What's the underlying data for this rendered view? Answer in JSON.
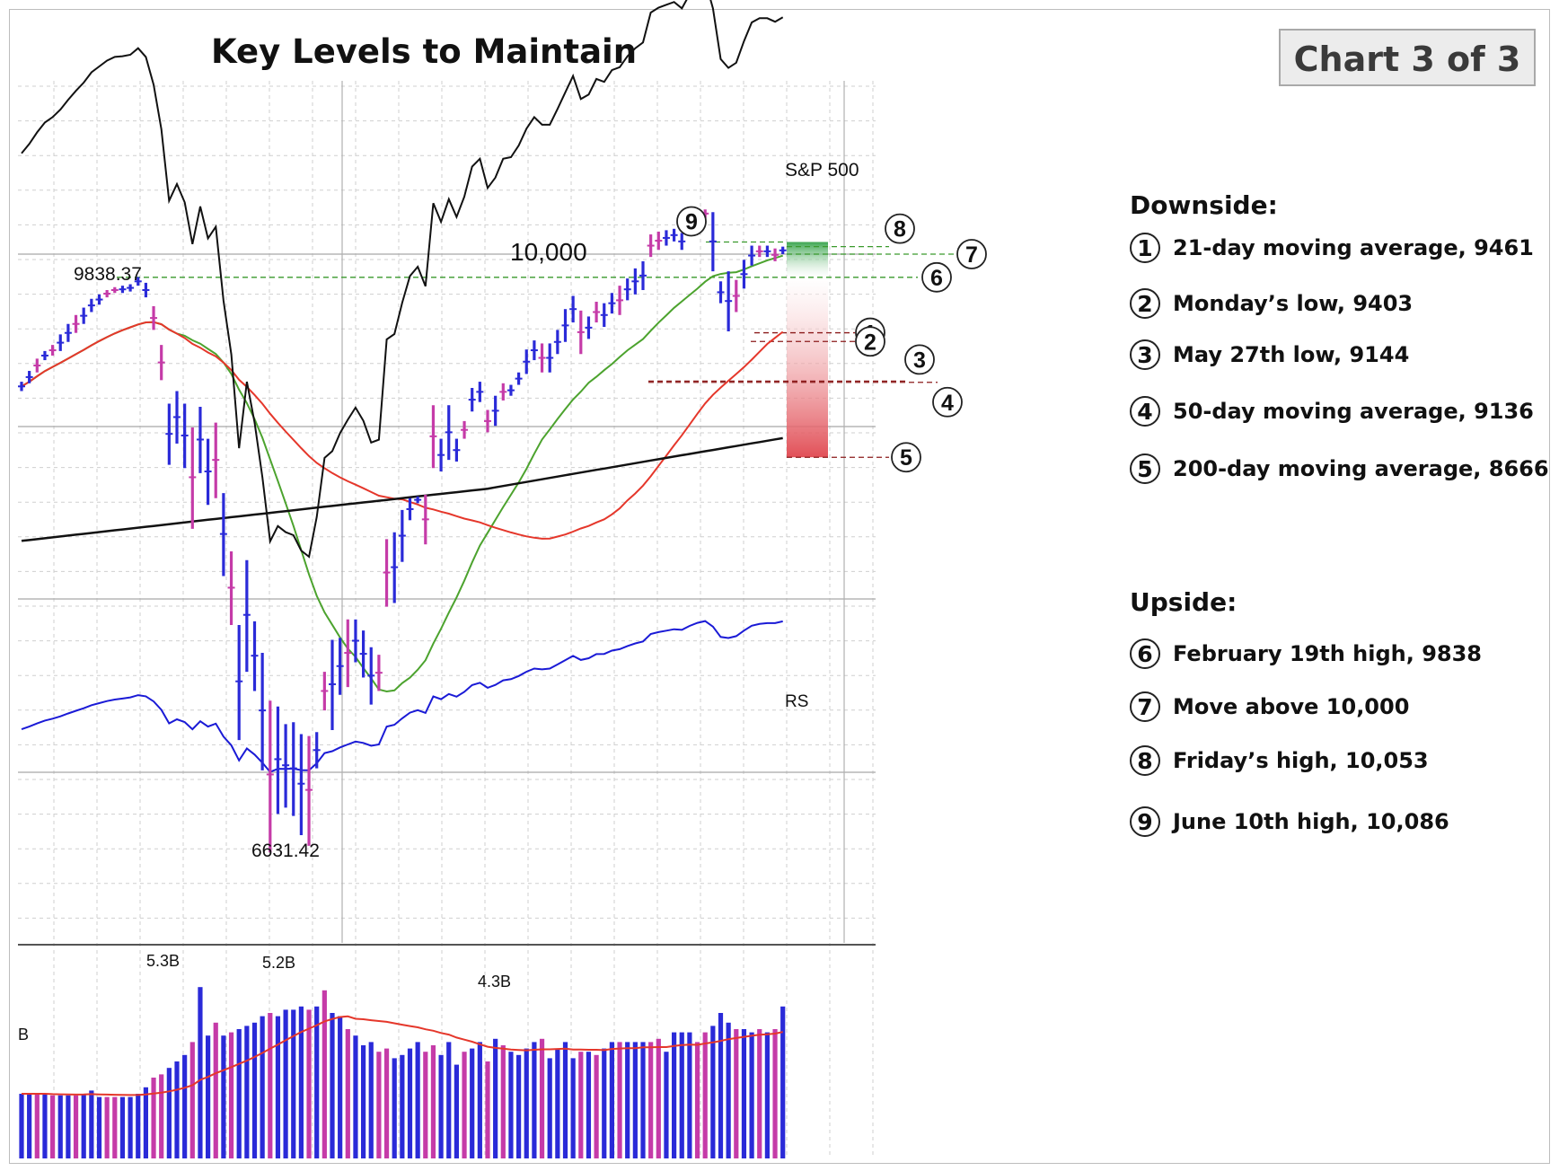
{
  "title": "Key Levels to Maintain",
  "badge": "Chart 3 of 3",
  "chart_data": [
    {
      "type": "line",
      "subtype": "ohlc-bar-price-chart",
      "title": "Key Levels to Maintain",
      "y_scale": "log",
      "ylim": [
        6400,
        10450
      ],
      "gridlines_labeled": [
        {
          "value": 10000,
          "label": "10,000"
        }
      ],
      "grid": true,
      "annotations": [
        {
          "value": 9838.37,
          "label": "9838.37"
        },
        {
          "value": 6631.42,
          "label": "6631.42"
        }
      ],
      "price_bars": [
        [
          9080,
          9140
        ],
        [
          9130,
          9210
        ],
        [
          9200,
          9290
        ],
        [
          9280,
          9340
        ],
        [
          9310,
          9380
        ],
        [
          9340,
          9450
        ],
        [
          9400,
          9520
        ],
        [
          9460,
          9580
        ],
        [
          9520,
          9630
        ],
        [
          9600,
          9690
        ],
        [
          9650,
          9720
        ],
        [
          9700,
          9750
        ],
        [
          9730,
          9770
        ],
        [
          9730,
          9780
        ],
        [
          9740,
          9790
        ],
        [
          9780,
          9840
        ],
        [
          9700,
          9800
        ],
        [
          9480,
          9640
        ],
        [
          9150,
          9380
        ],
        [
          8620,
          9000
        ],
        [
          8750,
          9080
        ],
        [
          8600,
          9000
        ],
        [
          8240,
          8850
        ],
        [
          8570,
          8980
        ],
        [
          8380,
          8780
        ],
        [
          8420,
          8880
        ],
        [
          7970,
          8450
        ],
        [
          7700,
          8110
        ],
        [
          7100,
          7700
        ],
        [
          7450,
          8060
        ],
        [
          7350,
          7720
        ],
        [
          6950,
          7550
        ],
        [
          6560,
          7300
        ],
        [
          6740,
          7270
        ],
        [
          6770,
          7180
        ],
        [
          6730,
          7190
        ],
        [
          6640,
          7130
        ],
        [
          6590,
          7120
        ],
        [
          6960,
          7140
        ],
        [
          7250,
          7450
        ],
        [
          7150,
          7620
        ],
        [
          7330,
          7630
        ],
        [
          7370,
          7730
        ],
        [
          7500,
          7730
        ],
        [
          7420,
          7670
        ],
        [
          7280,
          7580
        ],
        [
          7350,
          7540
        ],
        [
          7800,
          8180
        ],
        [
          7820,
          8220
        ],
        [
          8050,
          8350
        ],
        [
          8290,
          8420
        ],
        [
          8390,
          8430
        ],
        [
          8150,
          8440
        ],
        [
          8600,
          8990
        ],
        [
          8580,
          8780
        ],
        [
          8650,
          8990
        ],
        [
          8640,
          8780
        ],
        [
          8780,
          8890
        ],
        [
          8950,
          9100
        ],
        [
          9010,
          9140
        ],
        [
          8820,
          8960
        ],
        [
          8860,
          9050
        ],
        [
          9020,
          9130
        ],
        [
          9050,
          9120
        ],
        [
          9120,
          9200
        ],
        [
          9190,
          9350
        ],
        [
          9280,
          9410
        ],
        [
          9200,
          9390
        ],
        [
          9200,
          9390
        ],
        [
          9320,
          9480
        ],
        [
          9400,
          9620
        ],
        [
          9530,
          9710
        ],
        [
          9320,
          9610
        ],
        [
          9420,
          9570
        ],
        [
          9530,
          9670
        ],
        [
          9500,
          9660
        ],
        [
          9590,
          9730
        ],
        [
          9580,
          9780
        ],
        [
          9680,
          9830
        ],
        [
          9720,
          9900
        ],
        [
          9750,
          9950
        ],
        [
          9980,
          10140
        ],
        [
          10030,
          10160
        ],
        [
          10060,
          10170
        ],
        [
          10090,
          10180
        ],
        [
          10030,
          10150
        ],
        [
          10150,
          10230
        ],
        [
          10230,
          10290
        ],
        [
          10260,
          10320
        ],
        [
          9880,
          10300
        ],
        [
          9660,
          9810
        ],
        [
          9470,
          9880
        ],
        [
          9600,
          9820
        ],
        [
          9760,
          9960
        ],
        [
          9920,
          10060
        ],
        [
          9980,
          10060
        ],
        [
          9980,
          10060
        ],
        [
          9950,
          10040
        ],
        [
          10000,
          10053
        ]
      ],
      "series": [
        {
          "name": "S&P 500",
          "color": "#111111"
        },
        {
          "color": "#4ca32e"
        },
        {
          "color": "#e5372b"
        },
        {
          "color": "#111111"
        },
        {
          "name": "RS",
          "color": "#1a1ad6"
        }
      ]
    },
    {
      "type": "bar",
      "subtype": "volume",
      "bar_labels": [
        {
          "value": 5.3,
          "label": "5.3B"
        },
        {
          "value": 5.2,
          "label": "5.2B"
        },
        {
          "value": 4.3,
          "label": "4.3B"
        }
      ],
      "axis_fragment": "B",
      "values": [
        2.0,
        2.0,
        2.0,
        2.0,
        1.95,
        1.95,
        1.95,
        1.95,
        2.0,
        2.1,
        1.9,
        1.9,
        1.9,
        1.9,
        1.9,
        2.0,
        2.2,
        2.5,
        2.6,
        2.8,
        3.0,
        3.2,
        3.6,
        5.3,
        3.8,
        4.2,
        3.8,
        3.9,
        4.0,
        4.1,
        4.2,
        4.4,
        4.5,
        4.4,
        4.6,
        4.6,
        4.7,
        4.6,
        4.7,
        5.2,
        4.5,
        4.4,
        4.0,
        3.8,
        3.5,
        3.6,
        3.3,
        3.4,
        3.1,
        3.2,
        3.4,
        3.6,
        3.3,
        3.5,
        3.2,
        3.6,
        2.9,
        3.3,
        3.4,
        3.6,
        3.0,
        3.7,
        3.5,
        3.3,
        3.2,
        3.4,
        3.6,
        3.7,
        3.1,
        3.4,
        3.6,
        3.1,
        3.3,
        3.3,
        3.2,
        3.4,
        3.6,
        3.6,
        3.6,
        3.6,
        3.6,
        3.6,
        3.7,
        3.3,
        3.9,
        3.9,
        3.9,
        3.6,
        3.9,
        4.1,
        4.5,
        4.2,
        4.0,
        4.0,
        3.9,
        4.0,
        3.9,
        4.0,
        4.7
      ],
      "average_color": "#e5372b"
    }
  ],
  "overlay_labels": {
    "sp500": "S&P 500",
    "rs": "RS",
    "level_10000": "10,000",
    "high_label": "9838.37",
    "low_label": "6631.42",
    "vol_a": "5.3B",
    "vol_b": "5.2B",
    "vol_c": "4.3B",
    "vol_axis": "B"
  },
  "key_levels": [
    {
      "num": "1",
      "price": 9461,
      "color": "#8b1a1a"
    },
    {
      "num": "2",
      "price": 9403,
      "color": "#8b1a1a"
    },
    {
      "num": "3",
      "price": 9144,
      "color": "#8b1a1a"
    },
    {
      "num": "4",
      "price": 9136,
      "color": "#8b1a1a"
    },
    {
      "num": "5",
      "price": 8666,
      "color": "#8b1a1a"
    },
    {
      "num": "6",
      "price": 9838,
      "color": "#3a9a2c"
    },
    {
      "num": "7",
      "price": 10000,
      "color": "#3a9a2c"
    },
    {
      "num": "8",
      "price": 10053,
      "color": "#3a9a2c"
    },
    {
      "num": "9",
      "price": 10086,
      "color": "#3a9a2c"
    }
  ],
  "legend": {
    "downside_title": "Downside:",
    "upside_title": "Upside:",
    "downside": [
      {
        "num": "1",
        "text": "21-day moving average, 9461"
      },
      {
        "num": "2",
        "text": "Monday’s low, 9403"
      },
      {
        "num": "3",
        "text": "May 27th low, 9144"
      },
      {
        "num": "4",
        "text": "50-day moving average, 9136"
      },
      {
        "num": "5",
        "text": "200-day moving average, 8666"
      }
    ],
    "upside": [
      {
        "num": "6",
        "text": "February 19th high, 9838"
      },
      {
        "num": "7",
        "text": "Move above 10,000"
      },
      {
        "num": "8",
        "text": "Friday’s high, 10,053"
      },
      {
        "num": "9",
        "text": "June 10th high, 10,086"
      }
    ]
  },
  "colors": {
    "up_bar": "#2a2ad8",
    "down_bar": "#c53ba8",
    "grid": "#cfcfcf",
    "green_zone": "#3da547",
    "red_zone": "#e0474f"
  }
}
